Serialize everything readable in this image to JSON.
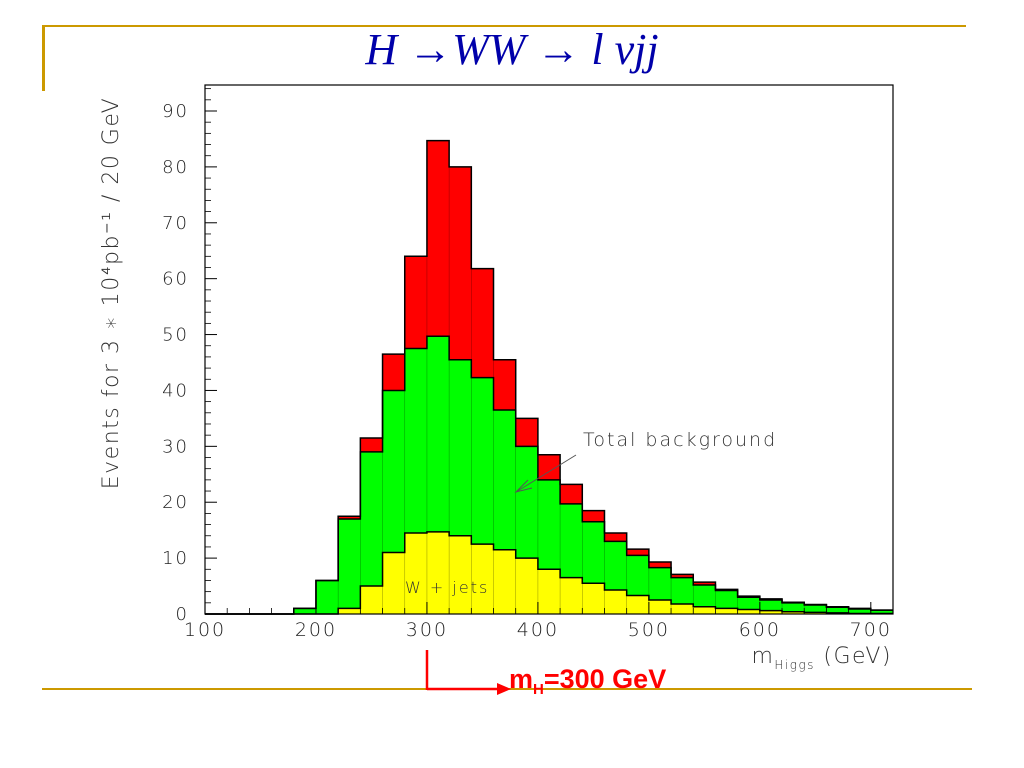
{
  "slide": {
    "title": "H →WW → l νjj",
    "marker_prefix": "m",
    "marker_sub": "H",
    "marker_suffix": "=300 GeV"
  },
  "chart_data": {
    "type": "bar",
    "stacked": true,
    "histogram": true,
    "bin_edges": [
      100,
      120,
      140,
      160,
      180,
      200,
      220,
      240,
      260,
      280,
      300,
      320,
      340,
      360,
      380,
      400,
      420,
      440,
      460,
      480,
      500,
      520,
      540,
      560,
      580,
      600,
      620,
      640,
      660,
      680,
      700,
      720
    ],
    "series": [
      {
        "name": "W + jets",
        "color": "#ffff00",
        "values": [
          0,
          0,
          0,
          0,
          0,
          0,
          1,
          5,
          11,
          14.5,
          14.7,
          14,
          12.5,
          11.5,
          10,
          8,
          6.5,
          5.5,
          4.3,
          3.3,
          2.5,
          1.8,
          1.3,
          1,
          0.8,
          0.6,
          0.4,
          0.3,
          0.2,
          0.1,
          0.1
        ]
      },
      {
        "color": "#00ff00",
        "values": [
          0,
          0,
          0,
          0,
          1,
          6,
          16,
          24,
          29,
          33,
          35,
          31.5,
          29.8,
          25,
          20,
          16,
          13.2,
          11,
          8.7,
          7.2,
          5.8,
          4.7,
          3.9,
          3.2,
          2.2,
          1.9,
          1.6,
          1.3,
          1,
          0.8,
          0.6
        ]
      },
      {
        "color": "#ff0000",
        "values": [
          0,
          0,
          0,
          0,
          0,
          0,
          0.5,
          2.5,
          6.5,
          16.5,
          35,
          34.5,
          19.5,
          9,
          5,
          4.5,
          3.5,
          2,
          1.5,
          1.1,
          1,
          0.6,
          0.5,
          0.2,
          0.2,
          0.2,
          0.1,
          0.1,
          0.1,
          0.1,
          0
        ]
      }
    ],
    "xlim": [
      100,
      720
    ],
    "ylim": [
      0,
      95
    ],
    "x_ticks": [
      100,
      200,
      300,
      400,
      500,
      600,
      700
    ],
    "y_ticks": [
      0,
      10,
      20,
      30,
      40,
      50,
      60,
      70,
      80,
      90
    ],
    "xlabel_main": "m",
    "xlabel_sub": "Higgs",
    "xlabel_unit": "(GeV)",
    "ylabel": "Events for 3 ∗ 10⁴pb⁻¹ / 20 GeV",
    "annotations": {
      "total_background": "Total background",
      "wjets_label": "W + jets"
    },
    "grid": false
  },
  "colors": {
    "frame": "#cc9900",
    "title": "#0000aa",
    "marker": "#ff0000"
  }
}
